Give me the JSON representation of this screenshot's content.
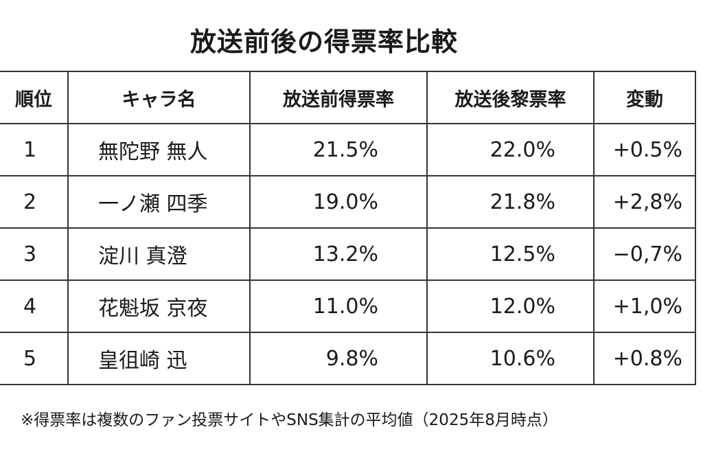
{
  "title": "放送前後の得票率比較",
  "table": {
    "headers": [
      "順位",
      "キャラ名",
      "放送前得票率",
      "放送後黎票率",
      "変動"
    ],
    "rows": [
      [
        "1",
        "無陀野 無人",
        "21.5%",
        "22.0%",
        "+0.5%"
      ],
      [
        "2",
        "一ノ瀬 四季",
        "19.0%",
        "21.8%",
        "+2,8%"
      ],
      [
        "3",
        "淀川 真澄",
        "13.2%",
        "12.5%",
        "−0,7%"
      ],
      [
        "4",
        "花魁坂 京夜",
        "11.0%",
        "12.0%",
        "+1,0%"
      ],
      [
        "5",
        "皇徂崎 迅",
        "9.8%",
        "10.6%",
        "+0.8%"
      ]
    ]
  },
  "footnote": "※得票率は複数のファン投票サイトやSNS集計の平均値（2025年8月時点）"
}
